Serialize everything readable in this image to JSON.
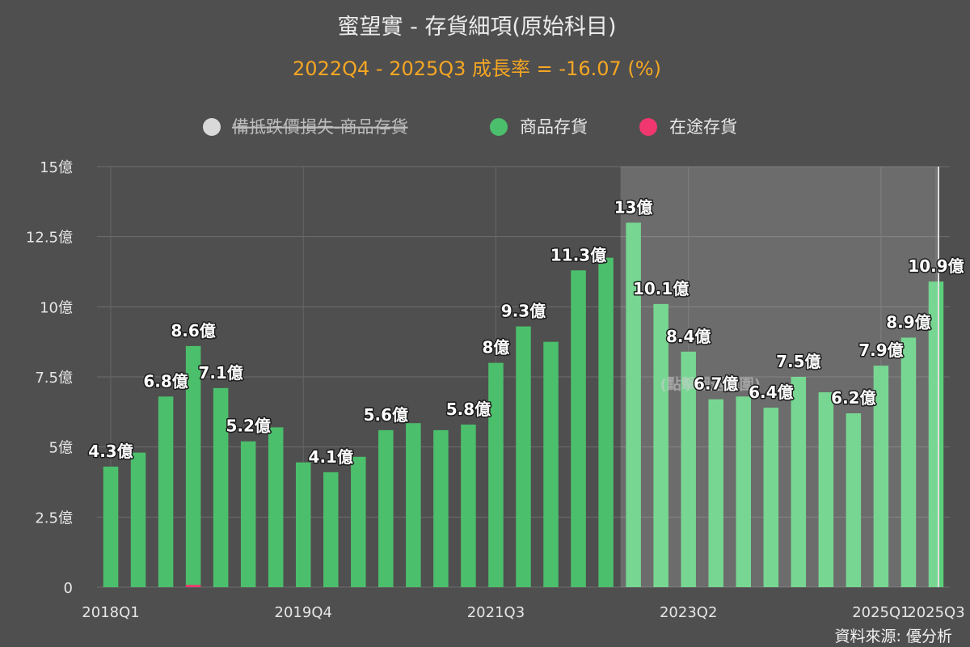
{
  "chart_data": {
    "type": "bar",
    "title": "蜜望實 - 存貨細項(原始科目)",
    "subtitle": "2022Q4 - 2025Q3 成長率 = -16.07 (%)",
    "source": "資料來源: 優分析",
    "selection_label": "(點擊圈選範圍)",
    "legend": [
      {
        "name": "備抵跌價損失-商品存貨",
        "color": "#d9d9d9",
        "hidden": true
      },
      {
        "name": "商品存貨",
        "color": "#4cbf6c",
        "hidden": false
      },
      {
        "name": "在途存貨",
        "color": "#f0376e",
        "hidden": false
      }
    ],
    "yunit": "億",
    "ylim": [
      0,
      15
    ],
    "yticks": [
      {
        "value": 0,
        "label": "0"
      },
      {
        "value": 2.5,
        "label": "2.5億"
      },
      {
        "value": 5,
        "label": "5億"
      },
      {
        "value": 7.5,
        "label": "7.5億"
      },
      {
        "value": 10,
        "label": "10億"
      },
      {
        "value": 12.5,
        "label": "12.5億"
      },
      {
        "value": 15,
        "label": "15億"
      }
    ],
    "categories": [
      "2018Q1",
      "2018Q2",
      "2018Q3",
      "2018Q4",
      "2019Q1",
      "2019Q2",
      "2019Q3",
      "2019Q4",
      "2020Q1",
      "2020Q2",
      "2020Q3",
      "2020Q4",
      "2021Q1",
      "2021Q2",
      "2021Q3",
      "2021Q4",
      "2022Q1",
      "2022Q2",
      "2022Q3",
      "2022Q4",
      "2023Q1",
      "2023Q2",
      "2023Q3",
      "2023Q4",
      "2024Q1",
      "2024Q2",
      "2024Q3",
      "2024Q4",
      "2025Q1",
      "2025Q2",
      "2025Q3"
    ],
    "xtick_labels": [
      {
        "index": 0,
        "label": "2018Q1"
      },
      {
        "index": 7,
        "label": "2019Q4"
      },
      {
        "index": 14,
        "label": "2021Q3"
      },
      {
        "index": 21,
        "label": "2023Q2"
      },
      {
        "index": 28,
        "label": "2025Q1"
      },
      {
        "index": 30,
        "label": "2025Q3"
      }
    ],
    "selection_range": [
      19,
      30
    ],
    "series": [
      {
        "name": "商品存貨",
        "values": [
          4.3,
          4.8,
          6.8,
          8.6,
          7.1,
          5.2,
          5.7,
          4.45,
          4.1,
          4.65,
          5.6,
          5.85,
          5.6,
          5.8,
          8.0,
          9.3,
          8.75,
          11.3,
          11.75,
          13.0,
          10.1,
          8.4,
          6.7,
          6.8,
          6.4,
          7.5,
          6.95,
          6.2,
          7.9,
          8.9,
          10.9
        ]
      },
      {
        "name": "在途存貨",
        "values": [
          0,
          0,
          0,
          0.08,
          0,
          0,
          0,
          0,
          0,
          0,
          0,
          0,
          0,
          0,
          0,
          0,
          0,
          0,
          0,
          0,
          0,
          0,
          0,
          0,
          0,
          0,
          0,
          0,
          0,
          0,
          0
        ]
      }
    ],
    "data_labels": [
      {
        "index": 0,
        "label": "4.3億"
      },
      {
        "index": 2,
        "label": "6.8億"
      },
      {
        "index": 3,
        "label": "8.6億"
      },
      {
        "index": 4,
        "label": "7.1億"
      },
      {
        "index": 5,
        "label": "5.2億"
      },
      {
        "index": 8,
        "label": "4.1億"
      },
      {
        "index": 10,
        "label": "5.6億"
      },
      {
        "index": 13,
        "label": "5.8億"
      },
      {
        "index": 14,
        "label": "8億"
      },
      {
        "index": 15,
        "label": "9.3億"
      },
      {
        "index": 17,
        "label": "11.3億"
      },
      {
        "index": 19,
        "label": "13億"
      },
      {
        "index": 20,
        "label": "10.1億"
      },
      {
        "index": 21,
        "label": "8.4億"
      },
      {
        "index": 22,
        "label": "6.7億"
      },
      {
        "index": 24,
        "label": "6.4億"
      },
      {
        "index": 25,
        "label": "7.5億"
      },
      {
        "index": 27,
        "label": "6.2億"
      },
      {
        "index": 28,
        "label": "7.9億"
      },
      {
        "index": 29,
        "label": "8.9億"
      },
      {
        "index": 30,
        "label": "10.9億"
      }
    ]
  }
}
